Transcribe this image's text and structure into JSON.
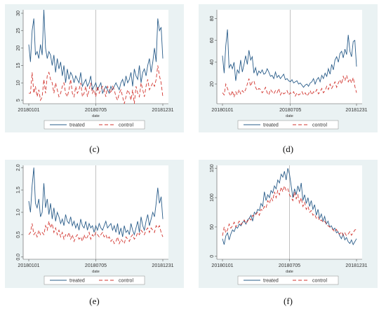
{
  "chart_data": [
    {
      "type": "line",
      "panel_label": "(c)",
      "xlabel": "date",
      "xticks": [
        "20180101",
        "20180705",
        "20181231"
      ],
      "yticks": [
        5,
        10,
        15,
        20,
        25,
        30
      ],
      "ylim": [
        4,
        31
      ],
      "legend_position": "bottom",
      "series": [
        {
          "name": "treated",
          "color": "#2a5d8a",
          "dash": "solid",
          "values": [
            21,
            16,
            25,
            28.5,
            18,
            19,
            17,
            21,
            18,
            31,
            20,
            17,
            19,
            18,
            15,
            18,
            13,
            17,
            14,
            16,
            12,
            15,
            10,
            14,
            11,
            13,
            12,
            10,
            12,
            11,
            10,
            13,
            9,
            10,
            11,
            9,
            10,
            12,
            8,
            9,
            10,
            8,
            9,
            10,
            7,
            8,
            9,
            8,
            7,
            9,
            8,
            9,
            10,
            9,
            8,
            10,
            11,
            9,
            12,
            10,
            11,
            13,
            9,
            14,
            12,
            11,
            15,
            10,
            13,
            14,
            12,
            15,
            17,
            13,
            16,
            20,
            16,
            28.5,
            25,
            26,
            17
          ]
        },
        {
          "name": "control",
          "color": "#d2352f",
          "dash": "5,3",
          "values": [
            7,
            7,
            13,
            7,
            9,
            6,
            8,
            5,
            6,
            11,
            7,
            12,
            13,
            11,
            10,
            7,
            10,
            8,
            6,
            7,
            9,
            10,
            7,
            6,
            8,
            11,
            7,
            6,
            9,
            7,
            8,
            10,
            6,
            7,
            9,
            6,
            8,
            10,
            7,
            8,
            6,
            9,
            7,
            8,
            9,
            8,
            6,
            9,
            8,
            7,
            9,
            8,
            6,
            5,
            7,
            8,
            6,
            4,
            6,
            8,
            7,
            5,
            8,
            4,
            9,
            7,
            6,
            10,
            8,
            6,
            9,
            11,
            8,
            9,
            10,
            9,
            11,
            15,
            12,
            10,
            6
          ]
        }
      ]
    },
    {
      "type": "line",
      "panel_label": "(d)",
      "xlabel": "date",
      "xticks": [
        "20180101",
        "20180705",
        "20181231"
      ],
      "yticks": [
        20,
        40,
        60,
        80
      ],
      "ylim": [
        2,
        88
      ],
      "legend_position": "bottom",
      "series": [
        {
          "name": "treated",
          "color": "#2a5d8a",
          "dash": "solid",
          "values": [
            46,
            30,
            55,
            70,
            35,
            38,
            34,
            40,
            23,
            33,
            30,
            42,
            31,
            38,
            46,
            38,
            51,
            42,
            45,
            30,
            35,
            28,
            32,
            30,
            33,
            29,
            30,
            34,
            31,
            27,
            28,
            25,
            31,
            26,
            28,
            25,
            27,
            29,
            24,
            25,
            23,
            22,
            24,
            21,
            22,
            23,
            20,
            21,
            19,
            17,
            19,
            20,
            18,
            21,
            22,
            25,
            20,
            24,
            26,
            22,
            28,
            25,
            30,
            27,
            34,
            29,
            38,
            33,
            42,
            45,
            40,
            48,
            50,
            44,
            52,
            47,
            65,
            50,
            45,
            59,
            60,
            36
          ]
        },
        {
          "name": "control",
          "color": "#d2352f",
          "dash": "5,3",
          "values": [
            12,
            10,
            20,
            16,
            12,
            9,
            14,
            8,
            13,
            10,
            15,
            11,
            14,
            12,
            15,
            20,
            25,
            18,
            22,
            23,
            17,
            14,
            16,
            15,
            12,
            14,
            17,
            12,
            10,
            15,
            13,
            11,
            14,
            12,
            16,
            10,
            13,
            11,
            12,
            14,
            10,
            12,
            11,
            13,
            9,
            12,
            10,
            11,
            13,
            10,
            12,
            9,
            11,
            14,
            10,
            13,
            12,
            15,
            11,
            13,
            16,
            12,
            14,
            18,
            15,
            20,
            16,
            19,
            22,
            17,
            21,
            24,
            20,
            27,
            23,
            28,
            22,
            25,
            21,
            26,
            18,
            12
          ]
        }
      ]
    },
    {
      "type": "line",
      "panel_label": "(e)",
      "xlabel": "date",
      "xticks": [
        "20180101",
        "20180705",
        "20181231"
      ],
      "yticks": [
        0.0,
        0.5,
        1.0,
        1.5,
        2.0
      ],
      "ylim": [
        -0.05,
        2.05
      ],
      "legend_position": "bottom",
      "series": [
        {
          "name": "treated",
          "color": "#2a5d8a",
          "dash": "solid",
          "values": [
            1.25,
            1.0,
            1.6,
            2.0,
            1.2,
            1.1,
            1.3,
            0.9,
            1.0,
            1.65,
            1.1,
            1.3,
            0.95,
            1.2,
            0.85,
            1.1,
            0.8,
            1.0,
            0.9,
            0.75,
            0.85,
            0.7,
            0.95,
            0.8,
            0.75,
            0.9,
            0.7,
            0.8,
            0.65,
            0.75,
            0.6,
            0.85,
            0.7,
            0.65,
            0.8,
            0.6,
            0.75,
            0.65,
            0.7,
            0.55,
            0.7,
            0.6,
            0.75,
            0.65,
            0.6,
            0.7,
            0.8,
            0.65,
            0.7,
            0.75,
            0.6,
            0.7,
            0.55,
            0.75,
            0.5,
            0.65,
            0.45,
            0.7,
            0.55,
            0.6,
            0.5,
            0.75,
            0.6,
            0.5,
            0.65,
            0.8,
            0.55,
            0.9,
            0.7,
            0.6,
            0.8,
            0.95,
            0.7,
            0.85,
            1.0,
            0.9,
            1.2,
            1.55,
            1.2,
            1.35,
            0.85
          ]
        },
        {
          "name": "control",
          "color": "#d2352f",
          "dash": "5,3",
          "values": [
            0.5,
            0.55,
            0.75,
            0.5,
            0.55,
            0.45,
            0.6,
            0.5,
            0.55,
            0.5,
            0.7,
            0.6,
            0.8,
            0.65,
            0.75,
            0.55,
            0.65,
            0.5,
            0.6,
            0.45,
            0.55,
            0.4,
            0.5,
            0.45,
            0.55,
            0.4,
            0.5,
            0.35,
            0.45,
            0.5,
            0.4,
            0.45,
            0.35,
            0.5,
            0.4,
            0.45,
            0.55,
            0.4,
            0.5,
            0.45,
            0.55,
            0.5,
            0.45,
            0.5,
            0.55,
            0.45,
            0.5,
            0.4,
            0.45,
            0.35,
            0.4,
            0.3,
            0.35,
            0.45,
            0.3,
            0.4,
            0.35,
            0.3,
            0.45,
            0.4,
            0.35,
            0.45,
            0.5,
            0.4,
            0.45,
            0.55,
            0.5,
            0.6,
            0.55,
            0.5,
            0.6,
            0.65,
            0.55,
            0.65,
            0.6,
            0.55,
            0.7,
            0.65,
            0.7,
            0.55,
            0.45
          ]
        }
      ]
    },
    {
      "type": "line",
      "panel_label": "(f)",
      "xlabel": "date",
      "xticks": [
        "20180101",
        "20180705",
        "20181231"
      ],
      "yticks": [
        0,
        50,
        100,
        150
      ],
      "ylim": [
        -5,
        155
      ],
      "legend_position": "bottom",
      "series": [
        {
          "name": "treated",
          "color": "#2a5d8a",
          "dash": "solid",
          "values": [
            30,
            20,
            35,
            40,
            28,
            38,
            45,
            42,
            50,
            48,
            55,
            52,
            58,
            60,
            55,
            62,
            65,
            70,
            60,
            75,
            72,
            80,
            78,
            90,
            85,
            110,
            95,
            105,
            100,
            112,
            108,
            120,
            115,
            130,
            125,
            140,
            135,
            145,
            130,
            150,
            140,
            120,
            100,
            115,
            105,
            120,
            110,
            125,
            95,
            105,
            90,
            100,
            85,
            95,
            80,
            88,
            70,
            80,
            65,
            72,
            60,
            68,
            55,
            60,
            50,
            52,
            45,
            48,
            40,
            42,
            35,
            30,
            38,
            28,
            32,
            25,
            22,
            28,
            20,
            25,
            30
          ]
        },
        {
          "name": "control",
          "color": "#d2352f",
          "dash": "5,3",
          "values": [
            35,
            50,
            40,
            45,
            55,
            48,
            52,
            58,
            50,
            55,
            60,
            54,
            58,
            62,
            56,
            60,
            65,
            62,
            70,
            68,
            72,
            75,
            70,
            80,
            78,
            85,
            82,
            95,
            90,
            100,
            95,
            110,
            100,
            112,
            105,
            118,
            110,
            120,
            112,
            115,
            105,
            100,
            95,
            110,
            98,
            105,
            90,
            100,
            85,
            92,
            80,
            85,
            75,
            78,
            70,
            72,
            65,
            68,
            60,
            62,
            58,
            60,
            55,
            52,
            50,
            48,
            45,
            42,
            46,
            40,
            38,
            42,
            36,
            40,
            35,
            38,
            42,
            36,
            40,
            45,
            46
          ]
        }
      ]
    }
  ]
}
